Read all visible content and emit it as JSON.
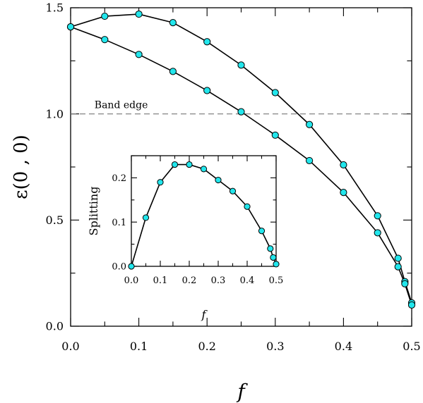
{
  "chart_data": [
    {
      "type": "line",
      "xlabel": "f",
      "ylabel": "ε(0 , 0)",
      "xlim": [
        0,
        0.5
      ],
      "ylim": [
        0,
        1.5
      ],
      "xticks": [
        "0.0",
        "0.1",
        "0.2",
        "0.3",
        "0.4",
        "0.5"
      ],
      "yticks": [
        "0.0",
        "0.5",
        "1.0",
        "1.5"
      ],
      "reference_line": {
        "y": 1.0,
        "label": "Band edge",
        "style": "dashed"
      },
      "series": [
        {
          "x": [
            0.0,
            0.05,
            0.1,
            0.15,
            0.2,
            0.25,
            0.3,
            0.35,
            0.4,
            0.45,
            0.48,
            0.49,
            0.5
          ],
          "values": [
            1.41,
            1.46,
            1.47,
            1.43,
            1.34,
            1.23,
            1.1,
            0.95,
            0.76,
            0.52,
            0.32,
            0.21,
            0.11
          ]
        },
        {
          "x": [
            0.0,
            0.05,
            0.1,
            0.15,
            0.2,
            0.25,
            0.3,
            0.35,
            0.4,
            0.45,
            0.48,
            0.49,
            0.5
          ],
          "values": [
            1.41,
            1.35,
            1.28,
            1.2,
            1.11,
            1.01,
            0.9,
            0.78,
            0.63,
            0.44,
            0.28,
            0.2,
            0.1
          ]
        }
      ]
    },
    {
      "type": "line",
      "inset": true,
      "xlabel": "f",
      "ylabel": "Splitting",
      "xlim": [
        0,
        0.5
      ],
      "ylim": [
        0,
        0.25
      ],
      "xticks": [
        "0.0",
        "0.1",
        "0.2",
        "0.3",
        "0.4",
        "0.5"
      ],
      "yticks": [
        "0.0",
        "0.1",
        "0.2"
      ],
      "series": [
        {
          "x": [
            0.0,
            0.05,
            0.1,
            0.15,
            0.2,
            0.25,
            0.3,
            0.35,
            0.4,
            0.45,
            0.48,
            0.49,
            0.5
          ],
          "values": [
            0.0,
            0.11,
            0.19,
            0.23,
            0.23,
            0.22,
            0.195,
            0.17,
            0.135,
            0.08,
            0.04,
            0.02,
            0.005
          ]
        }
      ]
    }
  ]
}
